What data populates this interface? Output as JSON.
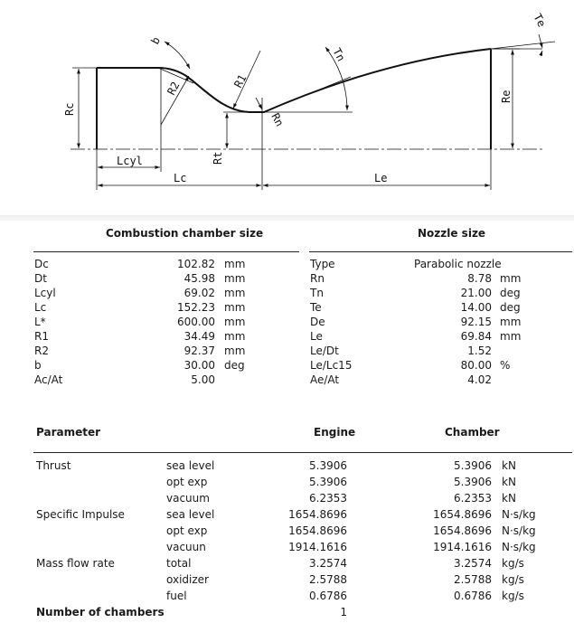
{
  "diagram": {
    "labels": {
      "Rc": "Rc",
      "Lcyl": "Lcyl",
      "Lc": "Lc",
      "b": "b",
      "R2": "R2",
      "R1": "R1",
      "Rt": "Rt",
      "Rn": "Rn",
      "Tn": "Tn",
      "Le": "Le",
      "Re": "Re",
      "Te": "Te"
    }
  },
  "chamber": {
    "title": "Combustion chamber size",
    "rows": [
      {
        "name": "Dc",
        "value": "102.82",
        "unit": "mm"
      },
      {
        "name": "Dt",
        "value": "45.98",
        "unit": "mm"
      },
      {
        "name": "Lcyl",
        "value": "69.02",
        "unit": "mm"
      },
      {
        "name": "Lc",
        "value": "152.23",
        "unit": "mm"
      },
      {
        "name": "L*",
        "value": "600.00",
        "unit": "mm"
      },
      {
        "name": "R1",
        "value": "34.49",
        "unit": "mm"
      },
      {
        "name": "R2",
        "value": "92.37",
        "unit": "mm"
      },
      {
        "name": "b",
        "value": "30.00",
        "unit": "deg"
      },
      {
        "name": "Ac/At",
        "value": "5.00",
        "unit": ""
      }
    ]
  },
  "nozzle": {
    "title": "Nozzle size",
    "rows": [
      {
        "name": "Type",
        "value": "Parabolic nozzle",
        "unit": ""
      },
      {
        "name": "Rn",
        "value": "8.78",
        "unit": "mm"
      },
      {
        "name": "Tn",
        "value": "21.00",
        "unit": "deg"
      },
      {
        "name": "Te",
        "value": "14.00",
        "unit": "deg"
      },
      {
        "name": "De",
        "value": "92.15",
        "unit": "mm"
      },
      {
        "name": "Le",
        "value": "69.84",
        "unit": "mm"
      },
      {
        "name": "Le/Dt",
        "value": "1.52",
        "unit": ""
      },
      {
        "name": "Le/Lc15",
        "value": "80.00",
        "unit": "%"
      },
      {
        "name": "Ae/At",
        "value": "4.02",
        "unit": ""
      }
    ]
  },
  "performance": {
    "headers": {
      "parameter": "Parameter",
      "engine": "Engine",
      "chamber": "Chamber"
    },
    "rows": [
      {
        "param": "Thrust",
        "cond": "sea level",
        "engine": "5.3906",
        "chamber": "5.3906",
        "unit": "kN"
      },
      {
        "param": "",
        "cond": "opt exp",
        "engine": "5.3906",
        "chamber": "5.3906",
        "unit": "kN"
      },
      {
        "param": "",
        "cond": "vacuum",
        "engine": "6.2353",
        "chamber": "6.2353",
        "unit": "kN"
      },
      {
        "param": "Specific Impulse",
        "cond": "sea level",
        "engine": "1654.8696",
        "chamber": "1654.8696",
        "unit": "N·s/kg"
      },
      {
        "param": "",
        "cond": "opt exp",
        "engine": "1654.8696",
        "chamber": "1654.8696",
        "unit": "N·s/kg"
      },
      {
        "param": "",
        "cond": "vacuun",
        "engine": "1914.1616",
        "chamber": "1914.1616",
        "unit": "N·s/kg"
      },
      {
        "param": "Mass flow rate",
        "cond": "total",
        "engine": "3.2574",
        "chamber": "3.2574",
        "unit": "kg/s"
      },
      {
        "param": "",
        "cond": "oxidizer",
        "engine": "2.5788",
        "chamber": "2.5788",
        "unit": "kg/s"
      },
      {
        "param": "",
        "cond": "fuel",
        "engine": "0.6786",
        "chamber": "0.6786",
        "unit": "kg/s"
      }
    ],
    "chambers_label": "Number of chambers",
    "chambers_value": "1"
  }
}
